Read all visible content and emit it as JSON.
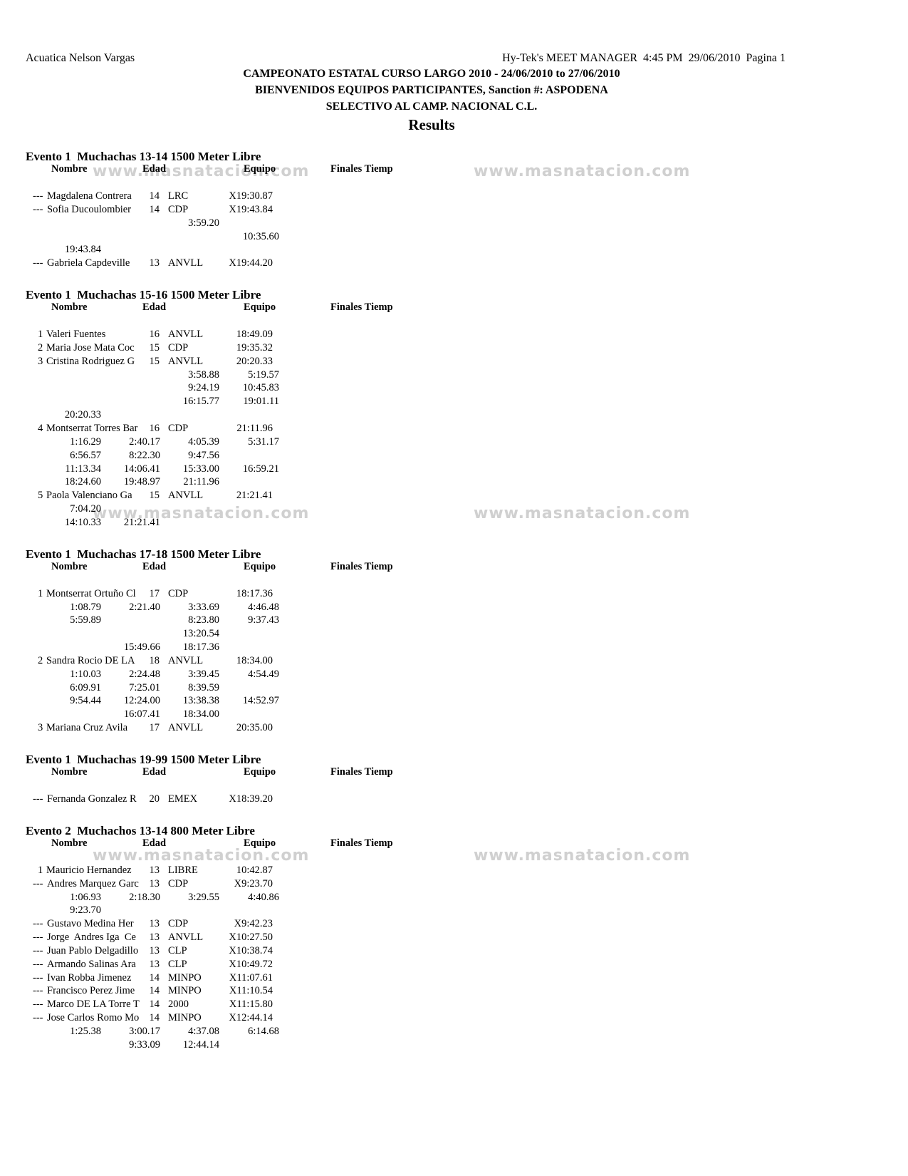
{
  "header": {
    "club": "Acuatica Nelson Vargas",
    "software_info": "Hy-Tek's MEET MANAGER  4:45 PM  29/06/2010  Pagina 1",
    "title1": "CAMPEONATO ESTATAL CURSO LARGO 2010 - 24/06/2010 to 27/06/2010",
    "title2": "BIENVENIDOS EQUIPOS PARTICIPANTES, Sanction #: ASPODENA",
    "title3": "SELECTIVO AL CAMP. NACIONAL C.L.",
    "results": "Results"
  },
  "watermark": "www.masnatacion.com",
  "columns": {
    "name": "Nombre",
    "age": "Edad",
    "team": "Equipo",
    "time": "Finales Tiemp"
  },
  "events": [
    {
      "title": "Evento 1  Muchachas 13-14 1500 Meter Libre",
      "rows": [
        {
          "place": "---",
          "name": "Magdalena Contrera",
          "age": "14",
          "team": "LRC",
          "time": "X19:30.87"
        },
        {
          "place": "---",
          "name": "Sofia Ducoulombier",
          "age": "14",
          "team": "CDP",
          "time": "X19:43.84"
        },
        {
          "splits": [
            "",
            "",
            "3:59.20",
            ""
          ]
        },
        {
          "splits": [
            "",
            "",
            "",
            "10:35.60"
          ]
        },
        {
          "splits": [
            "19:43.84",
            "",
            "",
            ""
          ]
        },
        {
          "place": "---",
          "name": "Gabriela Capdeville",
          "age": "13",
          "team": "ANVLL",
          "time": "X19:44.20"
        }
      ]
    },
    {
      "title": "Evento 1  Muchachas 15-16 1500 Meter Libre",
      "rows": [
        {
          "place": "1",
          "name": "Valeri Fuentes",
          "age": "16",
          "team": "ANVLL",
          "time": "18:49.09"
        },
        {
          "place": "2",
          "name": "Maria Jose Mata Coc",
          "age": "15",
          "team": "CDP",
          "time": "19:35.32"
        },
        {
          "place": "3",
          "name": "Cristina Rodriguez G",
          "age": "15",
          "team": "ANVLL",
          "time": "20:20.33"
        },
        {
          "splits": [
            "",
            "",
            "3:58.88",
            "5:19.57"
          ]
        },
        {
          "splits": [
            "",
            "",
            "9:24.19",
            "10:45.83"
          ]
        },
        {
          "splits": [
            "",
            "",
            "16:15.77",
            "19:01.11"
          ]
        },
        {
          "splits": [
            "20:20.33",
            "",
            "",
            ""
          ]
        },
        {
          "place": "4",
          "name": "Montserrat Torres Bar",
          "age": "16",
          "team": "CDP",
          "time": "21:11.96"
        },
        {
          "splits": [
            "1:16.29",
            "2:40.17",
            "4:05.39",
            "5:31.17"
          ]
        },
        {
          "splits": [
            "6:56.57",
            "8:22.30",
            "9:47.56",
            ""
          ]
        },
        {
          "splits": [
            "11:13.34",
            "14:06.41",
            "15:33.00",
            "16:59.21"
          ]
        },
        {
          "splits": [
            "18:24.60",
            "19:48.97",
            "21:11.96",
            ""
          ]
        },
        {
          "place": "5",
          "name": "Paola Valenciano Ga",
          "age": "15",
          "team": "ANVLL",
          "time": "21:21.41"
        },
        {
          "splits": [
            "7:04.20",
            "",
            "",
            ""
          ]
        },
        {
          "splits": [
            "14:10.33",
            "21:21.41",
            "",
            ""
          ]
        }
      ]
    },
    {
      "title": "Evento 1  Muchachas 17-18 1500 Meter Libre",
      "rows": [
        {
          "place": "1",
          "name": "Montserrat Ortuño Cl",
          "age": "17",
          "team": "CDP",
          "time": "18:17.36"
        },
        {
          "splits": [
            "1:08.79",
            "2:21.40",
            "3:33.69",
            "4:46.48"
          ]
        },
        {
          "splits": [
            "5:59.89",
            "",
            "8:23.80",
            "9:37.43"
          ]
        },
        {
          "splits": [
            "",
            "",
            "13:20.54",
            ""
          ]
        },
        {
          "splits": [
            "",
            "15:49.66",
            "18:17.36",
            ""
          ]
        },
        {
          "place": "2",
          "name": "Sandra Rocio DE LA",
          "age": "18",
          "team": "ANVLL",
          "time": "18:34.00"
        },
        {
          "splits": [
            "1:10.03",
            "2:24.48",
            "3:39.45",
            "4:54.49"
          ]
        },
        {
          "splits": [
            "6:09.91",
            "7:25.01",
            "8:39.59",
            ""
          ]
        },
        {
          "splits": [
            "9:54.44",
            "12:24.00",
            "13:38.38",
            "14:52.97"
          ]
        },
        {
          "splits": [
            "",
            "16:07.41",
            "18:34.00",
            ""
          ]
        },
        {
          "place": "3",
          "name": "Mariana Cruz Avila",
          "age": "17",
          "team": "ANVLL",
          "time": "20:35.00"
        }
      ]
    },
    {
      "title": "Evento 1  Muchachas 19-99 1500 Meter Libre",
      "rows": [
        {
          "place": "---",
          "name": "Fernanda Gonzalez R",
          "age": "20",
          "team": "EMEX",
          "time": "X18:39.20"
        }
      ]
    },
    {
      "title": "Evento 2  Muchachos 13-14 800 Meter Libre",
      "rows": [
        {
          "place": "1",
          "name": "Mauricio Hernandez",
          "age": "13",
          "team": "LIBRE",
          "time": "10:42.87"
        },
        {
          "place": "---",
          "name": "Andres Marquez Garc",
          "age": "13",
          "team": "CDP",
          "time": "X9:23.70"
        },
        {
          "splits": [
            "1:06.93",
            "2:18.30",
            "3:29.55",
            "4:40.86"
          ]
        },
        {
          "splits": [
            "9:23.70",
            "",
            "",
            ""
          ]
        },
        {
          "place": "---",
          "name": "Gustavo Medina Her",
          "age": "13",
          "team": "CDP",
          "time": "X9:42.23"
        },
        {
          "place": "---",
          "name": "Jorge  Andres Iga  Ce",
          "age": "13",
          "team": "ANVLL",
          "time": "X10:27.50"
        },
        {
          "place": "---",
          "name": "Juan Pablo Delgadillo",
          "age": "13",
          "team": "CLP",
          "time": "X10:38.74"
        },
        {
          "place": "---",
          "name": "Armando Salinas Ara",
          "age": "13",
          "team": "CLP",
          "time": "X10:49.72"
        },
        {
          "place": "---",
          "name": "Ivan Robba Jimenez",
          "age": "14",
          "team": "MINPO",
          "time": "X11:07.61"
        },
        {
          "place": "---",
          "name": "Francisco Perez Jime",
          "age": "14",
          "team": "MINPO",
          "time": "X11:10.54"
        },
        {
          "place": "---",
          "name": "Marco DE LA Torre T",
          "age": "14",
          "team": "2000",
          "time": "X11:15.80"
        },
        {
          "place": "---",
          "name": "Jose Carlos Romo Mo",
          "age": "14",
          "team": "MINPO",
          "time": "X12:44.14"
        },
        {
          "splits": [
            "1:25.38",
            "3:00.17",
            "4:37.08",
            "6:14.68"
          ]
        },
        {
          "splits": [
            "",
            "9:33.09",
            "12:44.14",
            ""
          ]
        }
      ]
    }
  ]
}
